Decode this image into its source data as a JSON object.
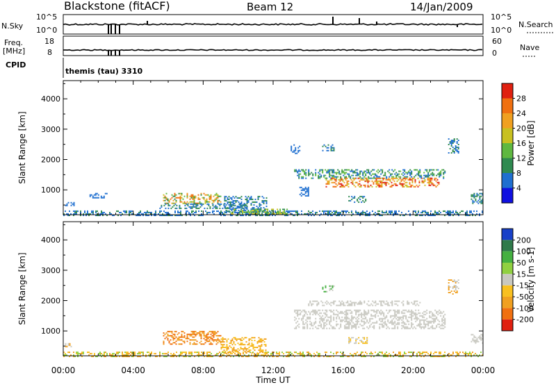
{
  "header": {
    "station": "Blackstone (fitACF)",
    "beam": "Beam 12",
    "date": "14/Jan/2009"
  },
  "strips": {
    "nsky_label": "N.Sky",
    "nsky_ticks": [
      "10^5",
      "10^0"
    ],
    "nsearch_label": "N.Search",
    "nsearch_ticks": [
      "10^5",
      "10^0"
    ],
    "freq_label": "Freq.",
    "freq_unit": "[MHz]",
    "freq_ticks": [
      "18",
      "8"
    ],
    "nave_label": "Nave",
    "nave_ticks": [
      "60",
      "0"
    ],
    "cpid_label": "CPID",
    "cpid_value": "themis (tau) 3310"
  },
  "chart_data": [
    {
      "type": "heatmap",
      "quantity": "Power",
      "xlabel": "Time UT",
      "ylabel": "Slant Range [km]",
      "colorbar_label": "Power [dB]",
      "xlim_hours": [
        0,
        24
      ],
      "ylim": [
        180,
        4600
      ],
      "yticks": [
        "1000",
        "2000",
        "3000",
        "4000"
      ],
      "xticks": [
        "00:00",
        "04:00",
        "08:00",
        "12:00",
        "16:00",
        "20:00",
        "00:00"
      ],
      "colorbar_ticks": [
        "4",
        "8",
        "12",
        "16",
        "20",
        "24",
        "28"
      ],
      "colorbar_colors": [
        "#1010e0",
        "#1f6fd0",
        "#2f8a50",
        "#5fb840",
        "#c8c020",
        "#f0a020",
        "#f07010",
        "#e02010"
      ],
      "regions": [
        {
          "t0": 0.0,
          "t1": 24.0,
          "r0": 180,
          "r1": 320,
          "values": [
            4,
            6,
            8
          ]
        },
        {
          "t0": 1.5,
          "t1": 2.5,
          "r0": 750,
          "r1": 900,
          "values": [
            4,
            6
          ]
        },
        {
          "t0": 0.1,
          "t1": 0.6,
          "r0": 480,
          "r1": 600,
          "values": [
            4,
            6
          ]
        },
        {
          "t0": 5.7,
          "t1": 9.0,
          "r0": 550,
          "r1": 900,
          "values": [
            8,
            12,
            16,
            20,
            24
          ]
        },
        {
          "t0": 5.5,
          "t1": 10.5,
          "r0": 380,
          "r1": 550,
          "values": [
            4,
            8
          ]
        },
        {
          "t0": 9.2,
          "t1": 11.6,
          "r0": 280,
          "r1": 800,
          "values": [
            4,
            6,
            8
          ]
        },
        {
          "t0": 9.5,
          "t1": 12.8,
          "r0": 200,
          "r1": 380,
          "values": [
            8,
            12,
            16
          ]
        },
        {
          "t0": 13.2,
          "t1": 21.8,
          "r0": 1380,
          "r1": 1680,
          "values": [
            4,
            8,
            12
          ]
        },
        {
          "t0": 15.0,
          "t1": 21.5,
          "r0": 1100,
          "r1": 1400,
          "values": [
            16,
            20,
            24,
            28
          ]
        },
        {
          "t0": 13.0,
          "t1": 13.5,
          "r0": 2200,
          "r1": 2500,
          "values": [
            4,
            6
          ]
        },
        {
          "t0": 14.8,
          "t1": 15.5,
          "r0": 2300,
          "r1": 2500,
          "values": [
            4,
            8
          ]
        },
        {
          "t0": 22.0,
          "t1": 22.6,
          "r0": 2200,
          "r1": 2700,
          "values": [
            4,
            8
          ]
        },
        {
          "t0": 23.3,
          "t1": 24.0,
          "r0": 550,
          "r1": 900,
          "values": [
            4,
            8
          ]
        },
        {
          "t0": 16.3,
          "t1": 17.4,
          "r0": 600,
          "r1": 800,
          "values": [
            4,
            8
          ]
        },
        {
          "t0": 13.5,
          "t1": 14.0,
          "r0": 800,
          "r1": 1100,
          "values": [
            4,
            6
          ]
        }
      ]
    },
    {
      "type": "heatmap",
      "quantity": "Velocity",
      "xlabel": "Time UT",
      "ylabel": "Slant Range [km]",
      "colorbar_label": "Velocity [m s-1]",
      "xlim_hours": [
        0,
        24
      ],
      "ylim": [
        180,
        4600
      ],
      "yticks": [
        "1000",
        "2000",
        "3000",
        "4000"
      ],
      "xticks": [
        "00:00",
        "04:00",
        "08:00",
        "12:00",
        "16:00",
        "20:00",
        "00:00"
      ],
      "colorbar_ticks": [
        "200",
        "100",
        "50",
        "15",
        "-15",
        "-50",
        "-100",
        "-200"
      ],
      "colorbar_colors": [
        "#1840c8",
        "#2f7a4a",
        "#44b040",
        "#90d040",
        "#c8c8c0",
        "#f8c020",
        "#f0a020",
        "#f07010",
        "#e02010"
      ],
      "regions": [
        {
          "t0": 0.0,
          "t1": 24.0,
          "r0": 180,
          "r1": 320,
          "values": [
            -50,
            -100,
            15
          ]
        },
        {
          "t0": 5.7,
          "t1": 9.0,
          "r0": 550,
          "r1": 1000,
          "values": [
            -100,
            -150
          ]
        },
        {
          "t0": 9.0,
          "t1": 11.6,
          "r0": 280,
          "r1": 800,
          "values": [
            -50,
            -70
          ]
        },
        {
          "t0": 13.2,
          "t1": 21.8,
          "r0": 1100,
          "r1": 1700,
          "values": [
            0,
            5,
            -5
          ]
        },
        {
          "t0": 14.0,
          "t1": 20.5,
          "r0": 1850,
          "r1": 2000,
          "values": [
            0,
            -5
          ]
        },
        {
          "t0": 14.8,
          "t1": 15.5,
          "r0": 2300,
          "r1": 2500,
          "values": [
            60,
            0
          ]
        },
        {
          "t0": 22.0,
          "t1": 22.6,
          "r0": 2200,
          "r1": 2700,
          "values": [
            -60,
            0
          ]
        },
        {
          "t0": 23.3,
          "t1": 24.0,
          "r0": 600,
          "r1": 900,
          "values": [
            0
          ]
        },
        {
          "t0": 16.3,
          "t1": 17.4,
          "r0": 600,
          "r1": 800,
          "values": [
            0,
            -20
          ]
        },
        {
          "t0": 0.1,
          "t1": 0.6,
          "r0": 480,
          "r1": 600,
          "values": [
            -60,
            0
          ]
        }
      ]
    }
  ]
}
